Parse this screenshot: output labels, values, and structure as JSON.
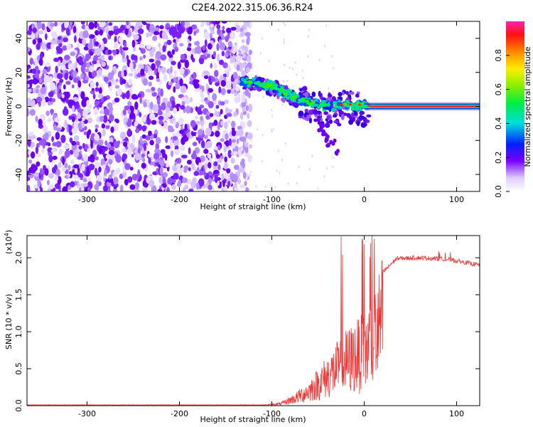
{
  "title": "C2E4.2022.315.06.36.R24",
  "chart_data": [
    {
      "type": "heatmap",
      "xlabel": "Height of straight line (km)",
      "ylabel": "Frequency (Hz)",
      "xlim": [
        -365,
        125
      ],
      "ylim": [
        -50,
        50
      ],
      "x_ticks": [
        -300,
        -200,
        -100,
        0,
        100
      ],
      "y_ticks": [
        -40,
        -20,
        0,
        20,
        40
      ],
      "colorbar": {
        "label": "Normalized spectral amplitude",
        "range": [
          0,
          1
        ],
        "ticks": [
          "0.0",
          "0.2",
          "0.4",
          "0.6",
          "0.8"
        ]
      },
      "features": {
        "noise_region_x": [
          -365,
          -123
        ],
        "trend_line": [
          {
            "x": -135,
            "f": 15
          },
          {
            "x": -120,
            "f": 14
          },
          {
            "x": -100,
            "f": 12
          },
          {
            "x": -85,
            "f": 8
          },
          {
            "x": -70,
            "f": 4
          },
          {
            "x": -55,
            "f": 2
          },
          {
            "x": -40,
            "f": 0
          },
          {
            "x": -20,
            "f": 1
          },
          {
            "x": 0,
            "f": 0.5
          },
          {
            "x": 125,
            "f": 0
          }
        ]
      }
    },
    {
      "type": "line",
      "xlabel": "Height of straight line (km)",
      "ylabel": "SNR (10 * v/v)",
      "y_multiplier": "(x10",
      "y_multiplier_exp": "4",
      "y_multiplier_close": ")",
      "xlim": [
        -365,
        125
      ],
      "ylim": [
        0,
        2.3
      ],
      "x_ticks": [
        -300,
        -200,
        -100,
        0,
        100
      ],
      "y_ticks": [
        "0.0",
        "0.5",
        "1.0",
        "1.5",
        "2.0"
      ],
      "color": "#ee3333",
      "envelope": [
        {
          "x": -365,
          "y": 0.01
        },
        {
          "x": -110,
          "y": 0.01
        },
        {
          "x": -90,
          "y": 0.04
        },
        {
          "x": -75,
          "y": 0.15
        },
        {
          "x": -60,
          "y": 0.3
        },
        {
          "x": -50,
          "y": 0.45
        },
        {
          "x": -40,
          "y": 0.6
        },
        {
          "x": -30,
          "y": 0.75
        },
        {
          "x": -20,
          "y": 0.9
        },
        {
          "x": -10,
          "y": 1.0
        },
        {
          "x": 0,
          "y": 1.1
        },
        {
          "x": 10,
          "y": 1.35
        },
        {
          "x": 20,
          "y": 1.8
        },
        {
          "x": 35,
          "y": 1.99
        },
        {
          "x": 60,
          "y": 2.0
        },
        {
          "x": 90,
          "y": 1.98
        },
        {
          "x": 125,
          "y": 1.9
        }
      ]
    }
  ]
}
